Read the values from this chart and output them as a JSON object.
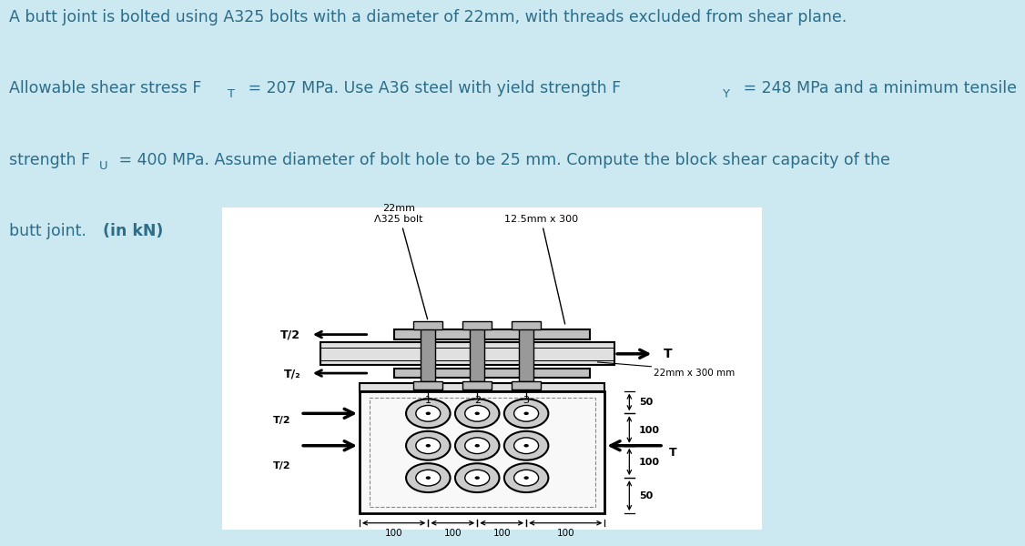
{
  "bg_color": "#cce8f0",
  "text_color": "#2c6e8a",
  "diagram_bg": "#ffffff",
  "line1": "A butt joint is bolted using A325 bolts with a diameter of 22mm, with threads excluded from shear plane.",
  "line2_parts": [
    [
      "Allowable shear stress F",
      false
    ],
    [
      "T",
      false
    ],
    [
      " = 207 MPa. Use A36 steel with yield strength F",
      false
    ],
    [
      "Y",
      false
    ],
    [
      " = 248 MPa and a minimum tensile",
      false
    ]
  ],
  "line3_parts": [
    [
      "strength F",
      false
    ],
    [
      "U",
      false
    ],
    [
      " = 400 MPa. Assume diameter of bolt hole to be 25 mm. Compute the block shear capacity of the",
      false
    ]
  ],
  "line4_normal": "butt joint. ",
  "line4_bold": "(in kN)",
  "fontsize": 12.5
}
